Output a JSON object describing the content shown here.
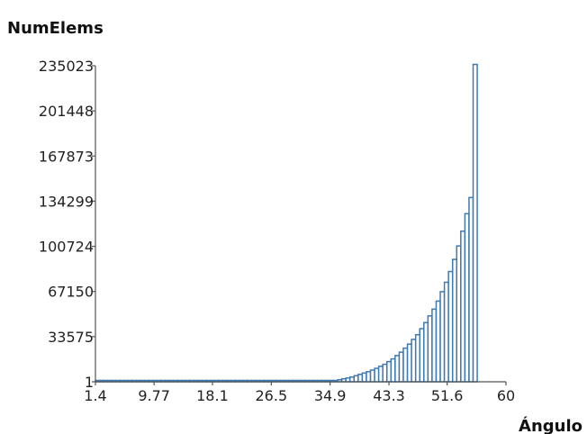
{
  "chart_data": {
    "type": "bar",
    "title": "",
    "ylabel": "NumElems",
    "xlabel": "Ángulo",
    "ylim": [
      1,
      235023
    ],
    "xlim": [
      1.4,
      60
    ],
    "y_ticks": [
      "235023",
      "201448",
      "167873",
      "134299",
      "100724",
      "67150",
      "33575",
      "1"
    ],
    "y_tick_values": [
      235023,
      201448,
      167873,
      134299,
      100724,
      67150,
      33575,
      1
    ],
    "x_ticks": [
      "1.4",
      "9.77",
      "18.1",
      "26.5",
      "34.9",
      "43.3",
      "51.6",
      "60"
    ],
    "x_tick_values": [
      1.4,
      9.77,
      18.1,
      26.5,
      34.9,
      43.3,
      51.6,
      60
    ],
    "bin_start": 1.4,
    "bin_width": 0.586,
    "values": [
      1,
      1,
      1,
      1,
      1,
      1,
      1,
      1,
      1,
      1,
      1,
      1,
      1,
      1,
      1,
      1,
      1,
      1,
      1,
      1,
      1,
      1,
      1,
      1,
      1,
      1,
      1,
      1,
      1,
      1,
      1,
      1,
      1,
      1,
      1,
      1,
      1,
      1,
      1,
      1,
      1,
      1,
      1,
      1,
      1,
      1,
      1,
      1,
      1,
      1,
      1,
      1,
      1,
      1,
      1,
      1,
      1,
      500,
      1000,
      1500,
      2200,
      2800,
      3500,
      4500,
      5500,
      6500,
      7500,
      8700,
      10000,
      11500,
      13000,
      15000,
      17000,
      19500,
      22000,
      25000,
      28000,
      31500,
      35000,
      39500,
      44000,
      49000,
      54000,
      60000,
      67000,
      74000,
      82000,
      91000,
      101000,
      112000,
      125000,
      137000,
      236000
    ],
    "legend": "none",
    "grid": false,
    "colors": {
      "bar_stroke": "#3d79b3",
      "bar_fill": "#ffffff"
    }
  }
}
